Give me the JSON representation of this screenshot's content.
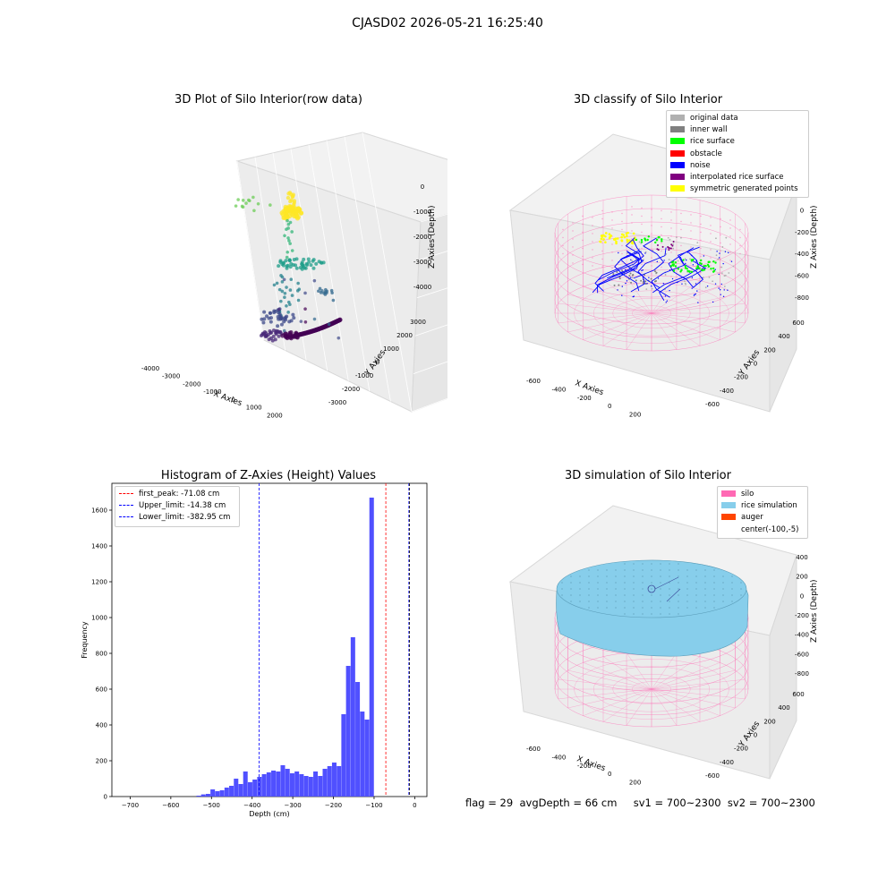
{
  "suptitle": "CJASD02 2026-05-21 16:25:40",
  "footer": "flag = 29  avgDepth = 66 cm     sv1 = 700~2300  sv2 = 700~2300",
  "chart_data": [
    {
      "type": "scatter",
      "title": "3D Plot of Silo Interior(row data)",
      "xlabel": "X Axies",
      "ylabel": "Y Axies",
      "zlabel": "Z Axies (Depth)",
      "x_ticks": [
        "-4000",
        "-3000",
        "-2000",
        "-1000",
        "0",
        "1000",
        "2000",
        "3000"
      ],
      "y_ticks": [
        "-3000",
        "-2000",
        "-1000",
        "0",
        "1000",
        "2000",
        "3000"
      ],
      "z_ticks": [
        "0",
        "-1000",
        "-2000",
        "-3000",
        "-4000"
      ],
      "colormap": "viridis"
    },
    {
      "type": "scatter",
      "title": "3D classify of Silo Interior",
      "xlabel": "X Axies",
      "ylabel": "Y Axies",
      "zlabel": "Z Axies (Depth)",
      "x_ticks": [
        "-600",
        "-400",
        "-200",
        "0",
        "200",
        "400"
      ],
      "y_ticks": [
        "-600",
        "-400",
        "-200",
        "0",
        "200",
        "400",
        "600"
      ],
      "z_ticks": [
        "200",
        "0",
        "-200",
        "-400",
        "-600",
        "-800"
      ],
      "legend": [
        {
          "label": "original data",
          "color": "#b0b0b0"
        },
        {
          "label": "inner wall",
          "color": "#808080"
        },
        {
          "label": "rice surface",
          "color": "#00ff00"
        },
        {
          "label": "obstacle",
          "color": "#ff0000"
        },
        {
          "label": "noise",
          "color": "#0000ff"
        },
        {
          "label": "interpolated rice surface",
          "color": "#800080"
        },
        {
          "label": "symmetric generated points",
          "color": "#ffff00"
        }
      ],
      "legend_position": "top-right"
    },
    {
      "type": "bar",
      "title": "Histogram of Z-Axies (Height) Values",
      "xlabel": "Depth (cm)",
      "ylabel": "Frequency",
      "xlim": [
        -745,
        30
      ],
      "ylim": [
        0,
        1750
      ],
      "x_ticks": [
        -700,
        -600,
        -500,
        -400,
        -300,
        -200,
        -100,
        0
      ],
      "y_ticks": [
        0,
        200,
        400,
        600,
        800,
        1000,
        1200,
        1400,
        1600
      ],
      "bin_width": 11.5,
      "bar_color": "#5050ff",
      "bins_left": [
        -537,
        -525.5,
        -514,
        -502.5,
        -491,
        -479.5,
        -468,
        -456.5,
        -445,
        -433.5,
        -422,
        -410.5,
        -399,
        -387.5,
        -376,
        -364.5,
        -353,
        -341.5,
        -330,
        -318.5,
        -307,
        -295.5,
        -284,
        -272.5,
        -261,
        -249.5,
        -238,
        -226.5,
        -215,
        -203.5,
        -192,
        -180.5,
        -169,
        -157.5,
        -146,
        -134.5,
        -123,
        -111.5,
        -100,
        -88.5,
        -77,
        -65.5,
        -54,
        -42.5,
        -31,
        -19.5,
        -8
      ],
      "values": [
        5,
        12,
        15,
        40,
        30,
        35,
        50,
        60,
        100,
        70,
        140,
        80,
        95,
        110,
        125,
        135,
        145,
        140,
        175,
        155,
        130,
        140,
        125,
        115,
        110,
        140,
        115,
        155,
        170,
        190,
        170,
        460,
        730,
        890,
        640,
        475,
        430,
        1670,
        0,
        0,
        0,
        0,
        0,
        0,
        0,
        0,
        0
      ],
      "vlines": [
        {
          "label": "first_peak: -71.08 cm",
          "x": -71.08,
          "color": "#ff0000"
        },
        {
          "label": "Upper_limit: -14.38 cm",
          "x": -14.38,
          "color": "#0000ff"
        },
        {
          "label": "Lower_limit: -382.95 cm",
          "x": -382.95,
          "color": "#0000ff"
        }
      ],
      "extra_vline": {
        "x": -13,
        "color": "#000000"
      },
      "legend_position": "top-left"
    },
    {
      "type": "scatter",
      "title": "3D simulation of Silo Interior",
      "xlabel": "X Axies",
      "ylabel": "Y Axies",
      "zlabel": "Z Axies (Depth)",
      "x_ticks": [
        "-600",
        "-400",
        "-200",
        "0",
        "200",
        "400"
      ],
      "y_ticks": [
        "-600",
        "-400",
        "-200",
        "0",
        "200",
        "400",
        "600"
      ],
      "z_ticks": [
        "400",
        "200",
        "0",
        "-200",
        "-400",
        "-600",
        "-800"
      ],
      "legend": [
        {
          "label": "silo",
          "color": "#ff69b4"
        },
        {
          "label": "rice simulation",
          "color": "#87ceeb"
        },
        {
          "label": "auger",
          "color": "#ff4500"
        },
        {
          "label": "center(-100,-5)",
          "color": ""
        }
      ],
      "legend_position": "top-right"
    }
  ]
}
